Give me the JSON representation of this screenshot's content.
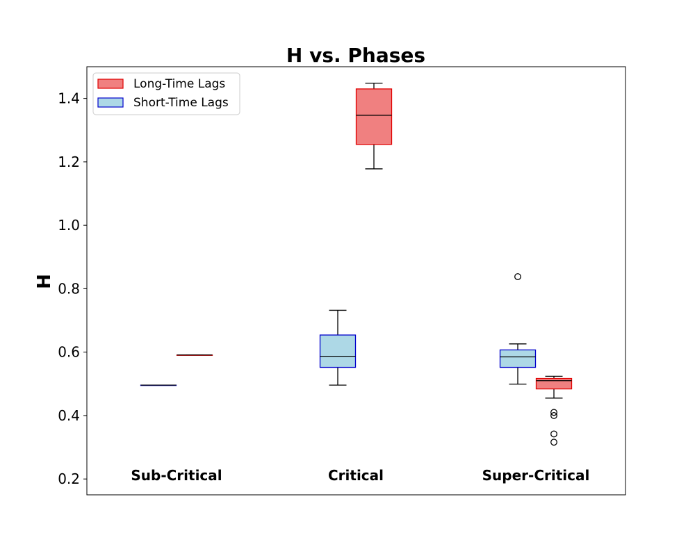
{
  "chart_data": {
    "type": "boxplot",
    "title": "H vs. Phases",
    "xlabel": "",
    "ylabel": "H",
    "ylim": [
      0.15,
      1.5
    ],
    "yticks": [
      0.2,
      0.4,
      0.6,
      0.8,
      1.0,
      1.2,
      1.4
    ],
    "ytick_labels": [
      "0.2",
      "0.4",
      "0.6",
      "0.8",
      "1.0",
      "1.2",
      "1.4"
    ],
    "categories": [
      "Sub-Critical",
      "Critical",
      "Super-Critical"
    ],
    "legend": {
      "placement": "top-left",
      "entries": [
        {
          "name": "Long-Time Lags",
          "fill": "#f08080",
          "edge": "#e00000"
        },
        {
          "name": "Short-Time Lags",
          "fill": "#add8e6",
          "edge": "#0000cc"
        }
      ]
    },
    "series": [
      {
        "name": "Short-Time Lags",
        "fill": "#add8e6",
        "edge": "#0000cc",
        "boxes": [
          {
            "category": "Sub-Critical",
            "whisker_low": 0.496,
            "q1": 0.496,
            "median": 0.496,
            "q3": 0.496,
            "whisker_high": 0.496,
            "outliers": []
          },
          {
            "category": "Critical",
            "whisker_low": 0.496,
            "q1": 0.552,
            "median": 0.587,
            "q3": 0.654,
            "whisker_high": 0.732,
            "outliers": []
          },
          {
            "category": "Super-Critical",
            "whisker_low": 0.499,
            "q1": 0.552,
            "median": 0.585,
            "q3": 0.607,
            "whisker_high": 0.626,
            "outliers": [
              0.838
            ]
          }
        ]
      },
      {
        "name": "Long-Time Lags",
        "fill": "#f08080",
        "edge": "#e00000",
        "boxes": [
          {
            "category": "Sub-Critical",
            "whisker_low": 0.591,
            "q1": 0.591,
            "median": 0.591,
            "q3": 0.591,
            "whisker_high": 0.591,
            "outliers": []
          },
          {
            "category": "Critical",
            "whisker_low": 1.178,
            "q1": 1.255,
            "median": 1.347,
            "q3": 1.43,
            "whisker_high": 1.448,
            "outliers": []
          },
          {
            "category": "Super-Critical",
            "whisker_low": 0.455,
            "q1": 0.484,
            "median": 0.51,
            "q3": 0.517,
            "whisker_high": 0.524,
            "outliers": [
              0.41,
              0.4,
              0.342,
              0.316
            ]
          }
        ]
      }
    ]
  }
}
